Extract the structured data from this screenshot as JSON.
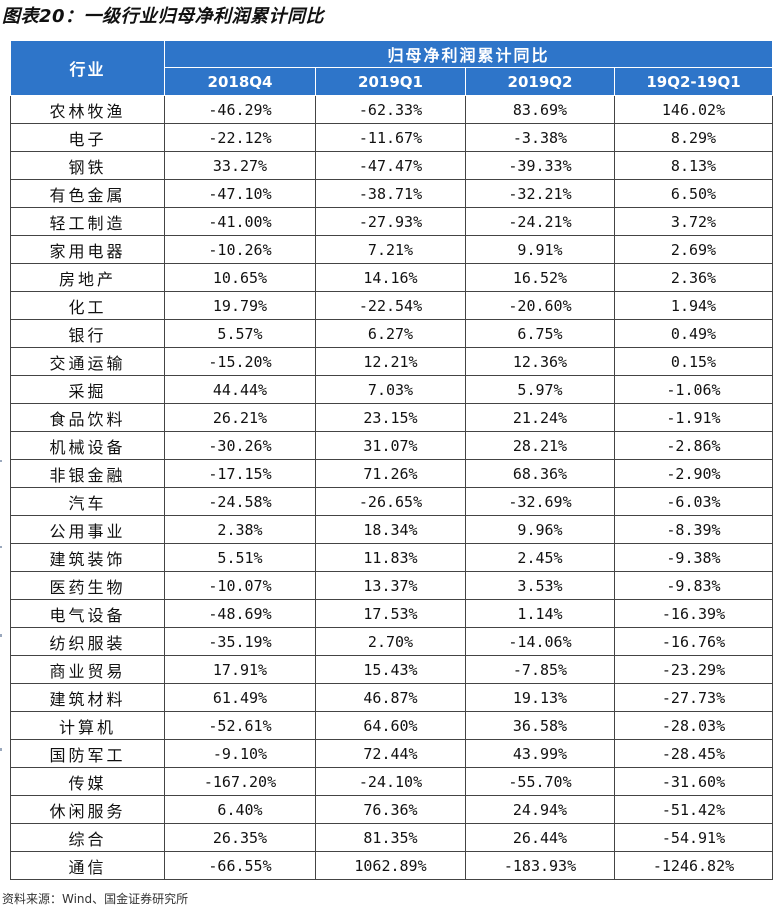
{
  "title": "图表20：一级行业归母净利润累计同比",
  "header": {
    "industry_label": "行业",
    "group_label": "归母净利润累计同比",
    "columns": [
      "2018Q4",
      "2019Q1",
      "2019Q2",
      "19Q2-19Q1"
    ]
  },
  "rows": [
    [
      "农林牧渔",
      "-46.29%",
      "-62.33%",
      "83.69%",
      "146.02%"
    ],
    [
      "电子",
      "-22.12%",
      "-11.67%",
      "-3.38%",
      "8.29%"
    ],
    [
      "钢铁",
      "33.27%",
      "-47.47%",
      "-39.33%",
      "8.13%"
    ],
    [
      "有色金属",
      "-47.10%",
      "-38.71%",
      "-32.21%",
      "6.50%"
    ],
    [
      "轻工制造",
      "-41.00%",
      "-27.93%",
      "-24.21%",
      "3.72%"
    ],
    [
      "家用电器",
      "-10.26%",
      "7.21%",
      "9.91%",
      "2.69%"
    ],
    [
      "房地产",
      "10.65%",
      "14.16%",
      "16.52%",
      "2.36%"
    ],
    [
      "化工",
      "19.79%",
      "-22.54%",
      "-20.60%",
      "1.94%"
    ],
    [
      "银行",
      "5.57%",
      "6.27%",
      "6.75%",
      "0.49%"
    ],
    [
      "交通运输",
      "-15.20%",
      "12.21%",
      "12.36%",
      "0.15%"
    ],
    [
      "采掘",
      "44.44%",
      "7.03%",
      "5.97%",
      "-1.06%"
    ],
    [
      "食品饮料",
      "26.21%",
      "23.15%",
      "21.24%",
      "-1.91%"
    ],
    [
      "机械设备",
      "-30.26%",
      "31.07%",
      "28.21%",
      "-2.86%"
    ],
    [
      "非银金融",
      "-17.15%",
      "71.26%",
      "68.36%",
      "-2.90%"
    ],
    [
      "汽车",
      "-24.58%",
      "-26.65%",
      "-32.69%",
      "-6.03%"
    ],
    [
      "公用事业",
      "2.38%",
      "18.34%",
      "9.96%",
      "-8.39%"
    ],
    [
      "建筑装饰",
      "5.51%",
      "11.83%",
      "2.45%",
      "-9.38%"
    ],
    [
      "医药生物",
      "-10.07%",
      "13.37%",
      "3.53%",
      "-9.83%"
    ],
    [
      "电气设备",
      "-48.69%",
      "17.53%",
      "1.14%",
      "-16.39%"
    ],
    [
      "纺织服装",
      "-35.19%",
      "2.70%",
      "-14.06%",
      "-16.76%"
    ],
    [
      "商业贸易",
      "17.91%",
      "15.43%",
      "-7.85%",
      "-23.29%"
    ],
    [
      "建筑材料",
      "61.49%",
      "46.87%",
      "19.13%",
      "-27.73%"
    ],
    [
      "计算机",
      "-52.61%",
      "64.60%",
      "36.58%",
      "-28.03%"
    ],
    [
      "国防军工",
      "-9.10%",
      "72.44%",
      "43.99%",
      "-28.45%"
    ],
    [
      "传媒",
      "-167.20%",
      "-24.10%",
      "-55.70%",
      "-31.60%"
    ],
    [
      "休闲服务",
      "6.40%",
      "76.36%",
      "24.94%",
      "-51.42%"
    ],
    [
      "综合",
      "26.35%",
      "81.35%",
      "26.44%",
      "-54.91%"
    ],
    [
      "通信",
      "-66.55%",
      "1062.89%",
      "-183.93%",
      "-1246.82%"
    ]
  ],
  "source": "资料来源：Wind、国金证券研究所",
  "colors": {
    "header_bg": "#2E75C9",
    "header_text": "#FFFFFF",
    "grid": "#444444"
  }
}
